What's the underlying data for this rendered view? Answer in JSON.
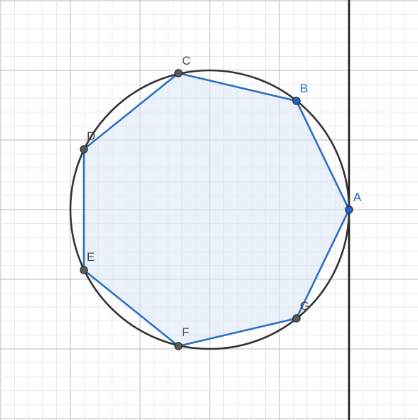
{
  "diagram": {
    "type": "geometry-construction",
    "grid": {
      "minor_color": "#e4e4e4",
      "major_color": "#c8c8c8",
      "background": "#ffffff"
    },
    "circle": {
      "stroke": "#333333"
    },
    "vertical_line": {
      "stroke": "#1a1a1a"
    },
    "polygon": {
      "name": "heptagon",
      "fill": "#dde8f6",
      "stroke": "#2a6fc4",
      "vertices": [
        "A",
        "B",
        "C",
        "D",
        "E",
        "F",
        "G"
      ]
    },
    "points": [
      {
        "label": "A",
        "color": "#1f66c6",
        "label_color": "#1f66c6",
        "role": "free"
      },
      {
        "label": "B",
        "color": "#1f66c6",
        "label_color": "#1f66c6",
        "role": "free"
      },
      {
        "label": "C",
        "color": "#5a5a5a",
        "label_color": "#444444",
        "role": "dependent"
      },
      {
        "label": "D",
        "color": "#5a5a5a",
        "label_color": "#444444",
        "role": "dependent"
      },
      {
        "label": "E",
        "color": "#5a5a5a",
        "label_color": "#444444",
        "role": "dependent"
      },
      {
        "label": "F",
        "color": "#5a5a5a",
        "label_color": "#444444",
        "role": "dependent"
      },
      {
        "label": "G",
        "color": "#5a5a5a",
        "label_color": "#444444",
        "role": "dependent"
      }
    ]
  }
}
